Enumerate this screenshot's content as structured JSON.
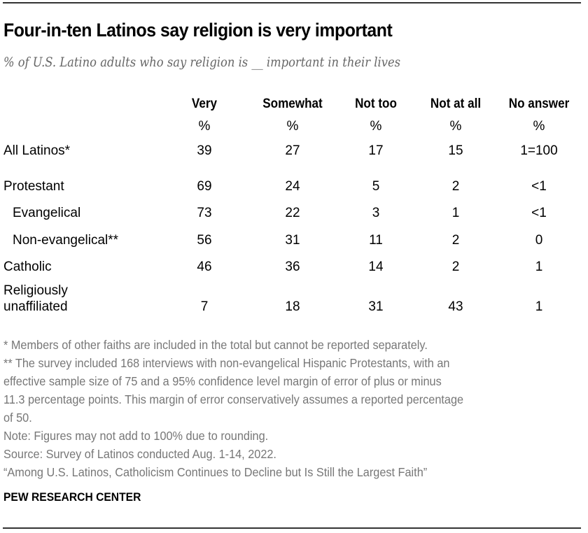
{
  "title": "Four-in-ten Latinos say religion is very important",
  "subtitle": "% of U.S. Latino adults who say religion is __ important in their lives",
  "chart_data": {
    "type": "table",
    "title": "Four-in-ten Latinos say religion is very important",
    "subtitle": "% of U.S. Latino adults who say religion is __ important in their lives",
    "columns": [
      "Very",
      "Somewhat",
      "Not too",
      "Not at all",
      "No answer"
    ],
    "units": [
      "%",
      "%",
      "%",
      "%",
      "%"
    ],
    "rows": [
      {
        "label": "All Latinos*",
        "indent": false,
        "values": [
          "39",
          "27",
          "17",
          "15",
          "1=100"
        ]
      },
      {
        "label": "Protestant",
        "indent": false,
        "values": [
          "69",
          "24",
          "5",
          "2",
          "<1"
        ]
      },
      {
        "label": "Evangelical",
        "indent": true,
        "values": [
          "73",
          "22",
          "3",
          "1",
          "<1"
        ]
      },
      {
        "label": "Non-evangelical**",
        "indent": true,
        "values": [
          "56",
          "31",
          "11",
          "2",
          "0"
        ]
      },
      {
        "label": "Catholic",
        "indent": false,
        "values": [
          "46",
          "36",
          "14",
          "2",
          "1"
        ]
      },
      {
        "label": "Religiously unaffiliated",
        "label_lines": [
          "Religiously",
          "unaffiliated"
        ],
        "indent": false,
        "values": [
          "7",
          "18",
          "31",
          "43",
          "1"
        ]
      }
    ]
  },
  "notes": [
    "* Members of other faiths are included in the total but cannot be reported separately.",
    "** The survey included 168 interviews with non-evangelical Hispanic Protestants, with an",
    "effective sample size of 75 and a 95% confidence level margin of error of plus or minus",
    "11.3 percentage points. This margin of error conservatively assumes a reported percentage",
    "of 50.",
    "Note: Figures may not add to 100% due to rounding.",
    "Source: Survey of Latinos conducted Aug. 1-14, 2022.",
    "“Among U.S. Latinos, Catholicism Continues to Decline but Is Still the Largest Faith”"
  ],
  "source_org": "PEW RESEARCH CENTER"
}
